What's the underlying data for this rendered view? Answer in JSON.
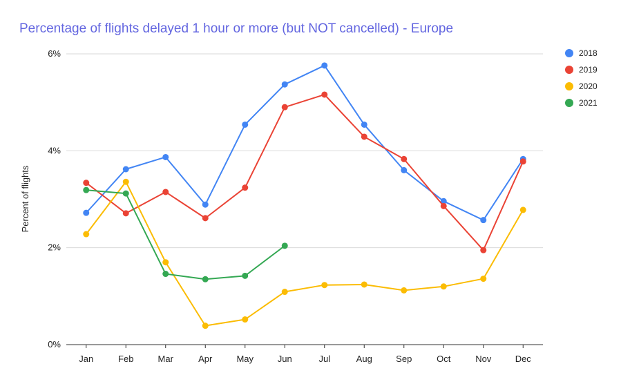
{
  "chart_data": {
    "type": "line",
    "title": "Percentage of flights delayed 1 hour or more (but NOT cancelled) - Europe",
    "xlabel": "",
    "ylabel": "Percent of flights",
    "categories": [
      "Jan",
      "Feb",
      "Mar",
      "Apr",
      "May",
      "Jun",
      "Jul",
      "Aug",
      "Sep",
      "Oct",
      "Nov",
      "Dec"
    ],
    "ylim": [
      0,
      6
    ],
    "yticks": [
      0,
      2,
      4,
      6
    ],
    "ytick_labels": [
      "0%",
      "2%",
      "4%",
      "6%"
    ],
    "grid": true,
    "legend_position": "right",
    "series": [
      {
        "name": "2018",
        "color": "#4285f4",
        "values": [
          2.72,
          3.62,
          3.87,
          2.89,
          4.54,
          5.37,
          5.76,
          4.54,
          3.6,
          2.96,
          2.57,
          3.83
        ]
      },
      {
        "name": "2019",
        "color": "#ea4335",
        "values": [
          3.34,
          2.71,
          3.15,
          2.61,
          3.24,
          4.9,
          5.16,
          4.29,
          3.83,
          2.86,
          1.95,
          3.78
        ]
      },
      {
        "name": "2020",
        "color": "#fbbc04",
        "values": [
          2.28,
          3.36,
          1.7,
          0.39,
          0.52,
          1.09,
          1.23,
          1.24,
          1.12,
          1.2,
          1.36,
          2.78
        ]
      },
      {
        "name": "2021",
        "color": "#34a853",
        "values": [
          3.19,
          3.12,
          1.46,
          1.35,
          1.42,
          2.04,
          null,
          null,
          null,
          null,
          null,
          null
        ]
      }
    ]
  },
  "colors": {
    "title": "#6366e0",
    "gridline": "#d9d9d9",
    "axis": "#333333"
  }
}
